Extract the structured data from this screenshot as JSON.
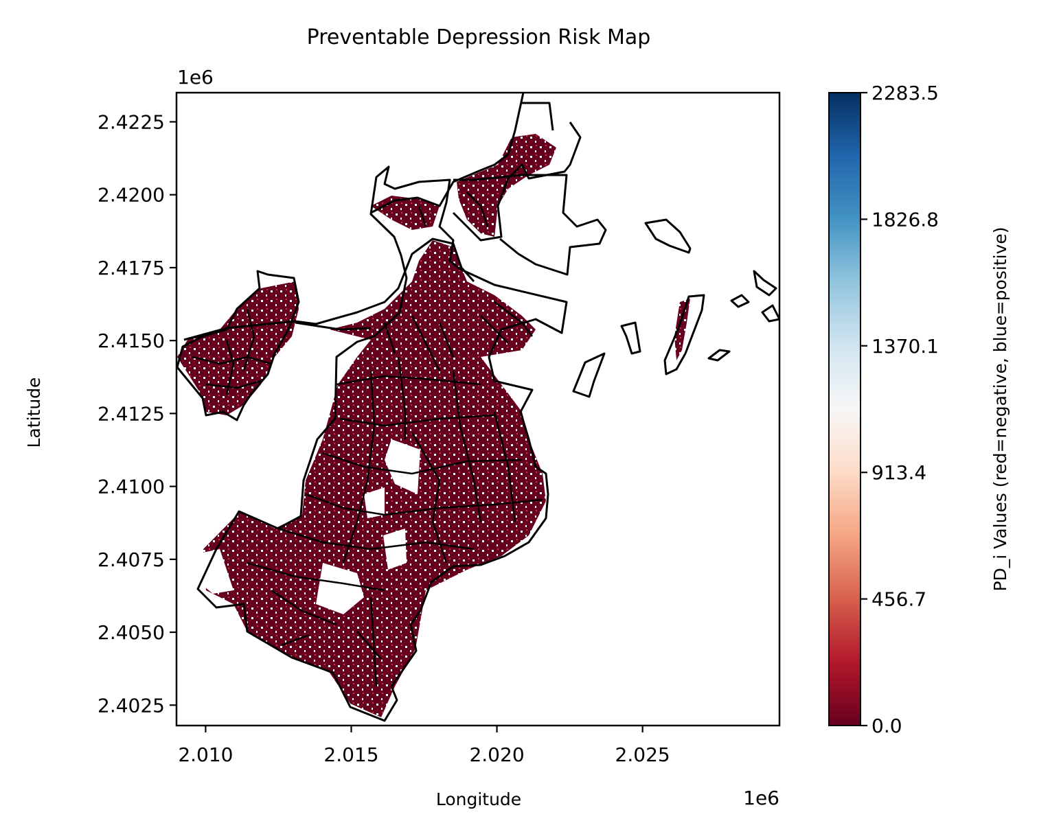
{
  "chart_data": {
    "type": "heatmap",
    "title": "Preventable Depression Risk Map",
    "xlabel": "Longitude",
    "ylabel": "Latitude",
    "x_offset_label": "1e6",
    "y_offset_label": "1e6",
    "xlim": [
      2.009,
      2.0297
    ],
    "ylim": [
      2.4018,
      2.4235
    ],
    "x_ticks": [
      2.01,
      2.015,
      2.02,
      2.025
    ],
    "x_tick_labels": [
      "2.010",
      "2.015",
      "2.020",
      "2.025"
    ],
    "y_ticks": [
      2.4025,
      2.405,
      2.4075,
      2.41,
      2.4125,
      2.415,
      2.4175,
      2.42,
      2.4225
    ],
    "y_tick_labels": [
      "2.4025",
      "2.4050",
      "2.4075",
      "2.4100",
      "2.4125",
      "2.4150",
      "2.4175",
      "2.4200",
      "2.4225"
    ],
    "colorbar": {
      "label": "PD_i Values (red=negative, blue=positive)",
      "colormap": "RdBu",
      "range": [
        0.0,
        2283.5
      ],
      "ticks": [
        0.0,
        456.7,
        913.4,
        1370.1,
        1826.8,
        2283.5
      ],
      "tick_labels": [
        "0.0",
        "456.7",
        "913.4",
        "1370.1",
        "1826.8",
        "2283.5"
      ],
      "colors": [
        "#67001f",
        "#b2182b",
        "#d6604d",
        "#f4a582",
        "#fddbc7",
        "#f7f7f7",
        "#d1e5f0",
        "#92c5de",
        "#4393c3",
        "#2166ac",
        "#053061"
      ]
    },
    "fill_color": "#67001f",
    "boundary_color": "#000000"
  }
}
